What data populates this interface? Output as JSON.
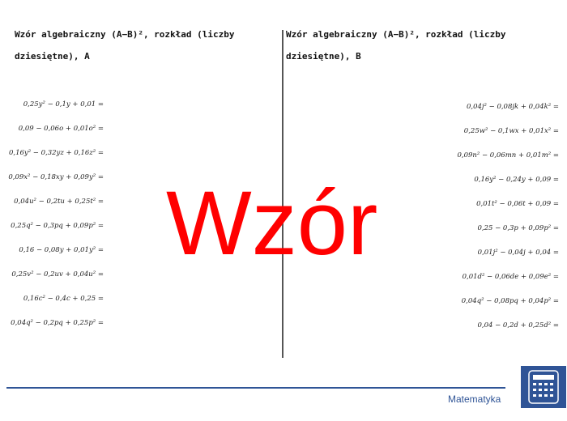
{
  "left": {
    "title_line1": "Wzór algebraiczny (A−B)², rozkład (liczby",
    "title_line2": "dziesiętne), A",
    "formulas": [
      "0,25y² − 0,1y + 0,01 =",
      "0,09 − 0,06o + 0,01o² =",
      "0,16y² − 0,32yz + 0,16z² =",
      "0,09x² − 0,18xy + 0,09y² =",
      "0,04u² − 0,2tu + 0,25t² =",
      "0,25q² − 0,3pq + 0,09p² =",
      "0,16 − 0,08y + 0,01y² =",
      "0,25v² − 0,2uv + 0,04u² =",
      "0,16c² − 0,4c + 0,25 =",
      "0,04q² − 0,2pq + 0,25p² ="
    ]
  },
  "right": {
    "title_line1": "Wzór algebraiczny (A−B)², rozkład (liczby",
    "title_line2": "dziesiętne), B",
    "formulas": [
      "0,04j² − 0,08jk + 0,04k² =",
      "0,25w² − 0,1wx + 0,01x² =",
      "0,09n² − 0,06mn + 0,01m² =",
      "0,16y² − 0,24y + 0,09 =",
      "0,01t² − 0,06t + 0,09 =",
      "0,25 − 0,3p + 0,09p² =",
      "0,01j² − 0,04j + 0,04 =",
      "0,01d² − 0,06de + 0,09e² =",
      "0,04q² − 0,08pq + 0,04p² =",
      "0,04 − 0,2d + 0,25d² ="
    ]
  },
  "watermark": "Wzór",
  "footer": {
    "brand": "Matematyka",
    "icon": "calculator-icon",
    "accent": "#2f5496"
  }
}
